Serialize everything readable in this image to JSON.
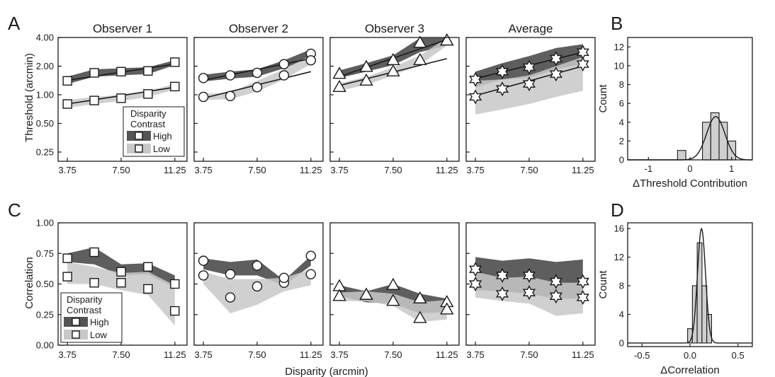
{
  "panel_letters": [
    "A",
    "B",
    "C",
    "D"
  ],
  "colors": {
    "high_band": "#555555",
    "low_band": "#c8c8c8",
    "bar_fill": "#cfcfcf",
    "axis": "#1a1a1a"
  },
  "row_a": {
    "ylabel": "Threshold (arcmin)",
    "yticks": [
      "4.00",
      "2.00",
      "1.00",
      "0.50",
      "0.25"
    ],
    "legend": {
      "title_line1": "Disparity",
      "title_line2": "Contrast",
      "high": "High",
      "low": "Low"
    }
  },
  "row_c": {
    "ylabel": "Correlation",
    "xlabel": "Disparity (arcmin)",
    "yticks": [
      "1.00",
      "0.75",
      "0.50",
      "0.25",
      "0.00"
    ],
    "legend": {
      "title_line1": "Disparity",
      "title_line2": "Contrast",
      "high": "High",
      "low": "Low"
    }
  },
  "xticks": [
    "3.75",
    "7.50",
    "11.25"
  ],
  "hist_b": {
    "xlabel": "ΔThreshold Contribution",
    "ylabel": "Count",
    "xticks": [
      "-1",
      "0",
      "1"
    ],
    "yticks": [
      "0",
      "2",
      "4",
      "6",
      "8",
      "10",
      "12"
    ]
  },
  "hist_d": {
    "xlabel": "ΔCorrelation",
    "ylabel": "Count",
    "xticks": [
      "-0.5",
      "0.0",
      "0.5"
    ],
    "yticks": [
      "0",
      "4",
      "8",
      "12",
      "16"
    ]
  },
  "chart_data": [
    {
      "type": "line",
      "panel": "A",
      "title": "Observer 1",
      "marker": "square",
      "yscale": "log2",
      "x": [
        3.75,
        5.625,
        7.5,
        9.375,
        11.25
      ],
      "ylim": [
        0.2,
        4.0
      ],
      "series": [
        {
          "name": "High",
          "values": [
            1.4,
            1.7,
            1.75,
            1.78,
            2.2
          ],
          "band_upper": [
            1.55,
            1.85,
            1.9,
            1.95,
            2.3
          ],
          "band_lower": [
            1.3,
            1.55,
            1.6,
            1.65,
            2.05
          ],
          "fit": [
            1.42,
            2.1
          ]
        },
        {
          "name": "Low",
          "values": [
            0.8,
            0.87,
            0.92,
            1.02,
            1.22
          ],
          "band_upper": [
            0.88,
            0.95,
            1.0,
            1.1,
            1.3
          ],
          "band_lower": [
            0.73,
            0.8,
            0.86,
            0.95,
            1.13
          ],
          "fit": [
            0.8,
            1.2
          ]
        }
      ]
    },
    {
      "type": "line",
      "panel": "A",
      "title": "Observer 2",
      "marker": "circle",
      "yscale": "log2",
      "x": [
        3.75,
        5.625,
        7.5,
        9.375,
        11.25
      ],
      "ylim": [
        0.2,
        4.0
      ],
      "series": [
        {
          "name": "High",
          "values": [
            1.5,
            1.6,
            1.7,
            2.1,
            2.7
          ],
          "band_upper": [
            1.62,
            1.75,
            1.85,
            2.3,
            3.0
          ],
          "band_lower": [
            1.38,
            1.48,
            1.55,
            1.9,
            2.45
          ],
          "fit": [
            1.42,
            2.4
          ]
        },
        {
          "name": "Low",
          "values": [
            0.95,
            0.97,
            1.2,
            1.6,
            2.3
          ],
          "band_upper": [
            1.02,
            1.06,
            1.4,
            1.85,
            2.6
          ],
          "band_lower": [
            0.88,
            0.9,
            1.08,
            1.45,
            2.1
          ],
          "fit": [
            0.92,
            1.75
          ]
        }
      ]
    },
    {
      "type": "line",
      "panel": "A",
      "title": "Observer 3",
      "marker": "triangle",
      "yscale": "log2",
      "x": [
        3.75,
        5.625,
        7.5,
        9.375,
        11.25
      ],
      "ylim": [
        0.2,
        4.0
      ],
      "series": [
        {
          "name": "High",
          "values": [
            1.65,
            1.95,
            2.3,
            3.5,
            3.7
          ],
          "band_upper": [
            1.8,
            2.15,
            2.6,
            3.95,
            3.95
          ],
          "band_lower": [
            1.5,
            1.75,
            2.05,
            2.8,
            3.3
          ],
          "fit": [
            1.55,
            3.8
          ]
        },
        {
          "name": "Low",
          "values": [
            1.2,
            1.4,
            1.75,
            2.3,
            3.7
          ],
          "band_upper": [
            1.32,
            1.55,
            1.95,
            2.6,
            3.95
          ],
          "band_lower": [
            1.1,
            1.27,
            1.6,
            2.05,
            3.3
          ],
          "fit": [
            1.25,
            2.4
          ]
        }
      ]
    },
    {
      "type": "line",
      "panel": "A",
      "title": "Average",
      "marker": "star",
      "yscale": "log2",
      "x": [
        3.75,
        5.625,
        7.5,
        9.375,
        11.25
      ],
      "ylim": [
        0.2,
        4.0
      ],
      "series": [
        {
          "name": "High",
          "values": [
            1.45,
            1.75,
            1.95,
            2.4,
            2.8
          ],
          "band_upper": [
            1.75,
            2.15,
            2.55,
            3.1,
            3.4
          ],
          "band_lower": [
            1.2,
            1.45,
            1.5,
            1.85,
            2.1
          ],
          "fit": [
            1.48,
            2.8
          ]
        },
        {
          "name": "Low",
          "values": [
            0.95,
            1.15,
            1.3,
            1.65,
            2.1
          ],
          "band_upper": [
            1.4,
            1.45,
            1.6,
            2.0,
            2.5
          ],
          "band_lower": [
            0.62,
            0.7,
            0.8,
            0.95,
            1.1
          ],
          "fit": [
            0.98,
            2.0
          ]
        }
      ]
    },
    {
      "type": "bar",
      "panel": "B",
      "xlim": [
        -1.5,
        1.5
      ],
      "ylim": [
        0,
        13
      ],
      "bins": [
        -0.2,
        0.2,
        0.4,
        0.6,
        0.8,
        1.0
      ],
      "bin_width": 0.2,
      "values": [
        1,
        0,
        4,
        5,
        4,
        2
      ],
      "fit_curve": {
        "type": "gaussian",
        "mean": 0.62,
        "sd": 0.22,
        "peak": 4.6
      }
    },
    {
      "type": "scatter",
      "panel": "C",
      "title": "Observer 1",
      "marker": "square",
      "x": [
        3.75,
        5.625,
        7.5,
        9.375,
        11.25
      ],
      "ylim": [
        0,
        1
      ],
      "series": [
        {
          "name": "High",
          "values": [
            0.71,
            0.76,
            0.6,
            0.64,
            0.5
          ],
          "band_upper": [
            0.75,
            0.8,
            0.66,
            0.67,
            0.57
          ],
          "band_lower": [
            0.68,
            0.66,
            0.57,
            0.58,
            0.47
          ]
        },
        {
          "name": "Low",
          "values": [
            0.56,
            0.51,
            0.51,
            0.46,
            0.28
          ],
          "band_upper": [
            0.68,
            0.64,
            0.59,
            0.6,
            0.49
          ],
          "band_lower": [
            0.5,
            0.5,
            0.45,
            0.41,
            0.16
          ]
        }
      ]
    },
    {
      "type": "scatter",
      "panel": "C",
      "title": "Observer 2",
      "marker": "circle",
      "x": [
        3.75,
        5.625,
        7.5,
        9.375,
        11.25
      ],
      "ylim": [
        0,
        1
      ],
      "series": [
        {
          "name": "High",
          "values": [
            0.69,
            0.58,
            0.65,
            0.51,
            0.73
          ],
          "band_upper": [
            0.71,
            0.68,
            0.7,
            0.53,
            0.73
          ],
          "band_lower": [
            0.62,
            0.57,
            0.57,
            0.49,
            0.65
          ]
        },
        {
          "name": "Low",
          "values": [
            0.57,
            0.39,
            0.48,
            0.55,
            0.58
          ],
          "band_upper": [
            0.6,
            0.54,
            0.54,
            0.55,
            0.62
          ],
          "band_lower": [
            0.5,
            0.26,
            0.33,
            0.44,
            0.49
          ]
        }
      ]
    },
    {
      "type": "scatter",
      "panel": "C",
      "title": "Observer 3",
      "marker": "triangle",
      "x": [
        3.75,
        5.625,
        7.5,
        9.375,
        11.25
      ],
      "ylim": [
        0,
        1
      ],
      "series": [
        {
          "name": "High",
          "values": [
            0.48,
            0.41,
            0.49,
            0.38,
            0.35
          ],
          "band_upper": [
            0.49,
            0.44,
            0.5,
            0.42,
            0.38
          ],
          "band_lower": [
            0.4,
            0.35,
            0.34,
            0.26,
            0.27
          ]
        },
        {
          "name": "Low",
          "values": [
            0.4,
            0.41,
            0.36,
            0.22,
            0.29
          ],
          "band_upper": [
            0.43,
            0.44,
            0.42,
            0.35,
            0.37
          ],
          "band_lower": [
            0.36,
            0.36,
            0.32,
            0.19,
            0.21
          ]
        }
      ]
    },
    {
      "type": "scatter",
      "panel": "C",
      "title": "Average",
      "marker": "star",
      "x": [
        3.75,
        5.625,
        7.5,
        9.375,
        11.25
      ],
      "ylim": [
        0,
        1
      ],
      "series": [
        {
          "name": "High",
          "values": [
            0.62,
            0.57,
            0.57,
            0.52,
            0.52
          ],
          "band_upper": [
            0.72,
            0.69,
            0.71,
            0.68,
            0.7
          ],
          "band_lower": [
            0.45,
            0.44,
            0.42,
            0.38,
            0.38
          ]
        },
        {
          "name": "Low",
          "values": [
            0.5,
            0.42,
            0.43,
            0.4,
            0.39
          ],
          "band_upper": [
            0.6,
            0.55,
            0.56,
            0.51,
            0.51
          ],
          "band_lower": [
            0.39,
            0.36,
            0.34,
            0.24,
            0.26
          ]
        }
      ]
    },
    {
      "type": "bar",
      "panel": "D",
      "xlim": [
        -0.65,
        0.65
      ],
      "ylim": [
        -0.5,
        16.8
      ],
      "bins": [
        0.0,
        0.05,
        0.1,
        0.15,
        0.2
      ],
      "bin_width": 0.05,
      "values": [
        2,
        8,
        14,
        8,
        4
      ],
      "fit_curve": {
        "type": "gaussian",
        "mean": 0.12,
        "sd": 0.042,
        "peak": 16.0
      }
    }
  ]
}
